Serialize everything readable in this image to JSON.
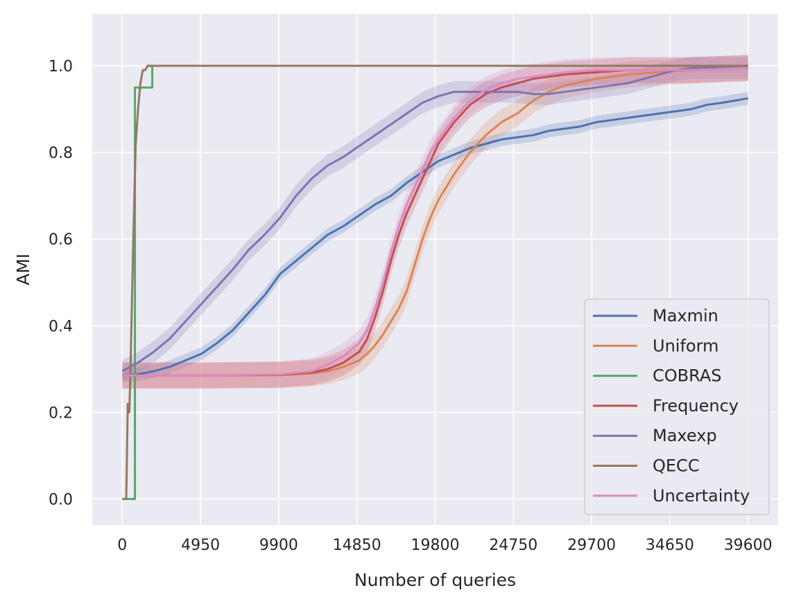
{
  "chart_data": {
    "type": "line",
    "title": "",
    "xlabel": "Number of queries",
    "ylabel": "AMI",
    "xlim": [
      -1900,
      41500
    ],
    "ylim": [
      -0.06,
      1.12
    ],
    "xticks": [
      0,
      4950,
      9900,
      14850,
      19800,
      24750,
      29700,
      34650,
      39600
    ],
    "xtick_labels": [
      "0",
      "4950",
      "9900",
      "14850",
      "19800",
      "24750",
      "29700",
      "34650",
      "39600"
    ],
    "yticks": [
      0.0,
      0.2,
      0.4,
      0.6,
      0.8,
      1.0
    ],
    "ytick_labels": [
      "0.0",
      "0.2",
      "0.4",
      "0.6",
      "0.8",
      "1.0"
    ],
    "grid": true,
    "legend_position": "lower-right",
    "series": [
      {
        "name": "Maxmin",
        "color": "#4c72b0",
        "band": 0.015,
        "x": [
          0,
          1000,
          2000,
          3000,
          4000,
          5000,
          6000,
          7000,
          8000,
          9000,
          10000,
          11000,
          12000,
          13000,
          14000,
          15000,
          16000,
          17000,
          18000,
          19000,
          20000,
          21000,
          22000,
          23000,
          24000,
          25000,
          26000,
          27000,
          28000,
          29000,
          30000,
          31000,
          32000,
          33000,
          34000,
          35000,
          36000,
          37000,
          38000,
          39600
        ],
        "y": [
          0.285,
          0.288,
          0.295,
          0.305,
          0.32,
          0.335,
          0.36,
          0.39,
          0.43,
          0.47,
          0.52,
          0.55,
          0.58,
          0.61,
          0.63,
          0.655,
          0.68,
          0.7,
          0.73,
          0.755,
          0.78,
          0.795,
          0.81,
          0.82,
          0.83,
          0.835,
          0.84,
          0.85,
          0.855,
          0.86,
          0.87,
          0.875,
          0.88,
          0.885,
          0.89,
          0.895,
          0.9,
          0.91,
          0.915,
          0.925
        ]
      },
      {
        "name": "Uniform",
        "color": "#dd8452",
        "band": 0.03,
        "x": [
          0,
          5000,
          10000,
          12000,
          13000,
          14000,
          15000,
          15500,
          16000,
          16500,
          17000,
          17500,
          18000,
          18500,
          19000,
          19500,
          20000,
          20500,
          21000,
          22000,
          23000,
          24000,
          25000,
          26000,
          27000,
          28000,
          30000,
          32000,
          34000,
          36000,
          39600
        ],
        "y": [
          0.285,
          0.285,
          0.286,
          0.29,
          0.295,
          0.305,
          0.32,
          0.335,
          0.355,
          0.38,
          0.41,
          0.44,
          0.48,
          0.54,
          0.6,
          0.65,
          0.69,
          0.72,
          0.75,
          0.8,
          0.84,
          0.87,
          0.89,
          0.92,
          0.94,
          0.955,
          0.97,
          0.98,
          0.985,
          0.99,
          0.995
        ]
      },
      {
        "name": "COBRAS",
        "color": "#55a868",
        "band": 0.0,
        "x": [
          0,
          800,
          800,
          800,
          1400,
          1900,
          1900,
          39600
        ],
        "y": [
          0.0,
          0.0,
          0.28,
          0.95,
          0.95,
          0.95,
          1.0,
          1.0
        ]
      },
      {
        "name": "Frequency",
        "color": "#c44e52",
        "band": 0.03,
        "x": [
          0,
          5000,
          10000,
          12000,
          13000,
          14000,
          15000,
          15500,
          16000,
          16500,
          17000,
          17500,
          18000,
          18500,
          19000,
          19500,
          20000,
          21000,
          22000,
          23000,
          24000,
          25000,
          26000,
          27000,
          28000,
          30000,
          32000,
          34000,
          36000,
          39600
        ],
        "y": [
          0.285,
          0.285,
          0.287,
          0.292,
          0.3,
          0.315,
          0.34,
          0.37,
          0.42,
          0.48,
          0.55,
          0.61,
          0.66,
          0.7,
          0.74,
          0.78,
          0.82,
          0.87,
          0.91,
          0.935,
          0.95,
          0.96,
          0.97,
          0.975,
          0.98,
          0.985,
          0.99,
          0.99,
          0.99,
          0.995
        ]
      },
      {
        "name": "Maxexp",
        "color": "#8172b3",
        "band": 0.025,
        "x": [
          0,
          1000,
          2000,
          3000,
          4000,
          5000,
          6000,
          7000,
          8000,
          9000,
          10000,
          11000,
          12000,
          13000,
          14000,
          15000,
          16000,
          17000,
          18000,
          19000,
          20000,
          21000,
          22000,
          23000,
          24000,
          25000,
          26000,
          27000,
          28000,
          29000,
          30000,
          31000,
          32000,
          33000,
          34000,
          35000,
          36000,
          37000,
          38000,
          39600
        ],
        "y": [
          0.295,
          0.315,
          0.34,
          0.37,
          0.41,
          0.45,
          0.49,
          0.53,
          0.575,
          0.61,
          0.65,
          0.7,
          0.74,
          0.77,
          0.79,
          0.815,
          0.84,
          0.865,
          0.89,
          0.915,
          0.93,
          0.94,
          0.94,
          0.94,
          0.94,
          0.94,
          0.935,
          0.935,
          0.94,
          0.945,
          0.95,
          0.955,
          0.96,
          0.97,
          0.98,
          0.99,
          0.995,
          0.995,
          0.995,
          0.995
        ]
      },
      {
        "name": "QECC",
        "color": "#937860",
        "band": 0.0,
        "x": [
          0,
          250,
          350,
          450,
          550,
          700,
          850,
          1000,
          1150,
          1300,
          1450,
          1600,
          39600
        ],
        "y": [
          0.0,
          0.0,
          0.22,
          0.2,
          0.35,
          0.6,
          0.82,
          0.9,
          0.96,
          0.99,
          0.99,
          1.0,
          1.0
        ]
      },
      {
        "name": "Uncertainty",
        "color": "#da8bc3",
        "band": 0.03,
        "x": [
          0,
          5000,
          10000,
          12000,
          13000,
          14000,
          15000,
          15500,
          16000,
          16500,
          17000,
          17500,
          18000,
          18500,
          19000,
          19500,
          20000,
          21000,
          22000,
          23000,
          24000,
          25000,
          26000,
          27000,
          28000,
          30000,
          32000,
          34000,
          36000,
          39600
        ],
        "y": [
          0.285,
          0.285,
          0.288,
          0.295,
          0.31,
          0.33,
          0.36,
          0.39,
          0.44,
          0.5,
          0.57,
          0.63,
          0.68,
          0.72,
          0.76,
          0.8,
          0.83,
          0.88,
          0.92,
          0.945,
          0.96,
          0.97,
          0.975,
          0.98,
          0.985,
          0.99,
          0.99,
          0.99,
          0.99,
          0.995
        ]
      }
    ]
  }
}
